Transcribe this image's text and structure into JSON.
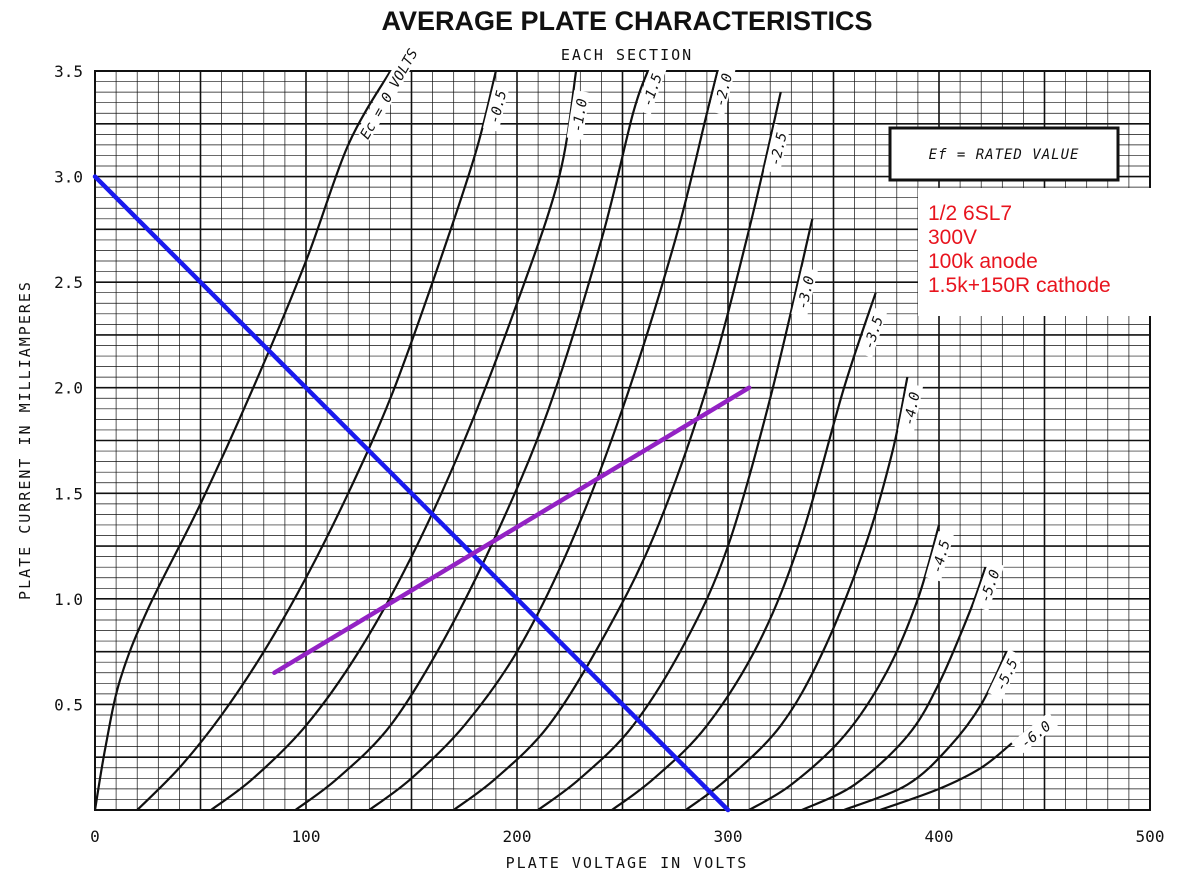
{
  "chart_data": {
    "type": "line",
    "title": "AVERAGE PLATE CHARACTERISTICS",
    "subtitle": "EACH SECTION",
    "xlabel": "PLATE VOLTAGE IN VOLTS",
    "ylabel": "PLATE CURRENT IN MILLIAMPERES",
    "xlim": [
      0,
      500
    ],
    "ylim": [
      0,
      3.5
    ],
    "x_ticks": [
      "0",
      "100",
      "200",
      "300",
      "400",
      "500"
    ],
    "y_ticks": [
      "0.5",
      "1.0",
      "1.5",
      "2.0",
      "2.5",
      "3.0",
      "3.5"
    ],
    "grid": true,
    "filament_note": "Ef = RATED VALUE",
    "series": [
      {
        "name": "Ec = 0 VOLTS",
        "points": [
          [
            0,
            0
          ],
          [
            5,
            0.3
          ],
          [
            12,
            0.62
          ],
          [
            25,
            0.95
          ],
          [
            50,
            1.45
          ],
          [
            75,
            2.0
          ],
          [
            100,
            2.6
          ],
          [
            120,
            3.15
          ],
          [
            140,
            3.5
          ]
        ]
      },
      {
        "name": "-0.5",
        "points": [
          [
            20,
            0
          ],
          [
            40,
            0.2
          ],
          [
            60,
            0.45
          ],
          [
            80,
            0.75
          ],
          [
            100,
            1.1
          ],
          [
            120,
            1.5
          ],
          [
            140,
            1.95
          ],
          [
            160,
            2.5
          ],
          [
            180,
            3.1
          ],
          [
            190,
            3.5
          ]
        ]
      },
      {
        "name": "-1.0",
        "points": [
          [
            55,
            0
          ],
          [
            75,
            0.15
          ],
          [
            100,
            0.4
          ],
          [
            125,
            0.75
          ],
          [
            150,
            1.2
          ],
          [
            175,
            1.75
          ],
          [
            200,
            2.4
          ],
          [
            220,
            3.0
          ],
          [
            228,
            3.5
          ]
        ]
      },
      {
        "name": "-1.5",
        "points": [
          [
            95,
            0
          ],
          [
            115,
            0.15
          ],
          [
            140,
            0.4
          ],
          [
            165,
            0.8
          ],
          [
            190,
            1.3
          ],
          [
            215,
            1.9
          ],
          [
            240,
            2.7
          ],
          [
            255,
            3.3
          ],
          [
            262,
            3.5
          ]
        ]
      },
      {
        "name": "-2.0",
        "points": [
          [
            130,
            0
          ],
          [
            150,
            0.15
          ],
          [
            175,
            0.4
          ],
          [
            200,
            0.75
          ],
          [
            225,
            1.25
          ],
          [
            250,
            1.9
          ],
          [
            275,
            2.7
          ],
          [
            290,
            3.3
          ],
          [
            295,
            3.5
          ]
        ]
      },
      {
        "name": "-2.5",
        "points": [
          [
            170,
            0
          ],
          [
            190,
            0.15
          ],
          [
            215,
            0.4
          ],
          [
            240,
            0.8
          ],
          [
            265,
            1.3
          ],
          [
            290,
            2.0
          ],
          [
            310,
            2.75
          ],
          [
            325,
            3.4
          ]
        ]
      },
      {
        "name": "-3.0",
        "points": [
          [
            210,
            0
          ],
          [
            230,
            0.15
          ],
          [
            255,
            0.4
          ],
          [
            280,
            0.8
          ],
          [
            300,
            1.25
          ],
          [
            320,
            1.95
          ],
          [
            340,
            2.8
          ]
        ]
      },
      {
        "name": "-3.5",
        "points": [
          [
            245,
            0
          ],
          [
            265,
            0.15
          ],
          [
            290,
            0.4
          ],
          [
            315,
            0.8
          ],
          [
            335,
            1.3
          ],
          [
            355,
            2.0
          ],
          [
            370,
            2.45
          ]
        ]
      },
      {
        "name": "-4.0",
        "points": [
          [
            280,
            0
          ],
          [
            300,
            0.15
          ],
          [
            325,
            0.4
          ],
          [
            345,
            0.75
          ],
          [
            365,
            1.25
          ],
          [
            378,
            1.7
          ],
          [
            385,
            2.05
          ]
        ]
      },
      {
        "name": "-4.5",
        "points": [
          [
            310,
            0
          ],
          [
            330,
            0.12
          ],
          [
            355,
            0.35
          ],
          [
            375,
            0.65
          ],
          [
            390,
            1.0
          ],
          [
            400,
            1.35
          ]
        ]
      },
      {
        "name": "-5.0",
        "points": [
          [
            335,
            0
          ],
          [
            360,
            0.12
          ],
          [
            385,
            0.35
          ],
          [
            400,
            0.6
          ],
          [
            415,
            0.95
          ],
          [
            422,
            1.15
          ]
        ]
      },
      {
        "name": "-5.5",
        "points": [
          [
            355,
            0
          ],
          [
            385,
            0.12
          ],
          [
            405,
            0.3
          ],
          [
            420,
            0.5
          ],
          [
            432,
            0.75
          ]
        ]
      },
      {
        "name": "-6.0",
        "points": [
          [
            372,
            0
          ],
          [
            400,
            0.1
          ],
          [
            420,
            0.2
          ],
          [
            435,
            0.32
          ],
          [
            445,
            0.4
          ]
        ]
      }
    ],
    "overlays": [
      {
        "kind": "load-line",
        "color": "#1a1aee",
        "points": [
          [
            0,
            3.0
          ],
          [
            300,
            0
          ]
        ]
      },
      {
        "kind": "cathode-load-line",
        "color": "#9322c4",
        "points": [
          [
            85,
            0.65
          ],
          [
            310,
            2.0
          ]
        ]
      }
    ]
  },
  "annotation": {
    "lines": [
      "1/2 6SL7",
      "300V",
      "100k anode",
      "1.5k+150R cathode"
    ],
    "color": "#e8141e"
  }
}
